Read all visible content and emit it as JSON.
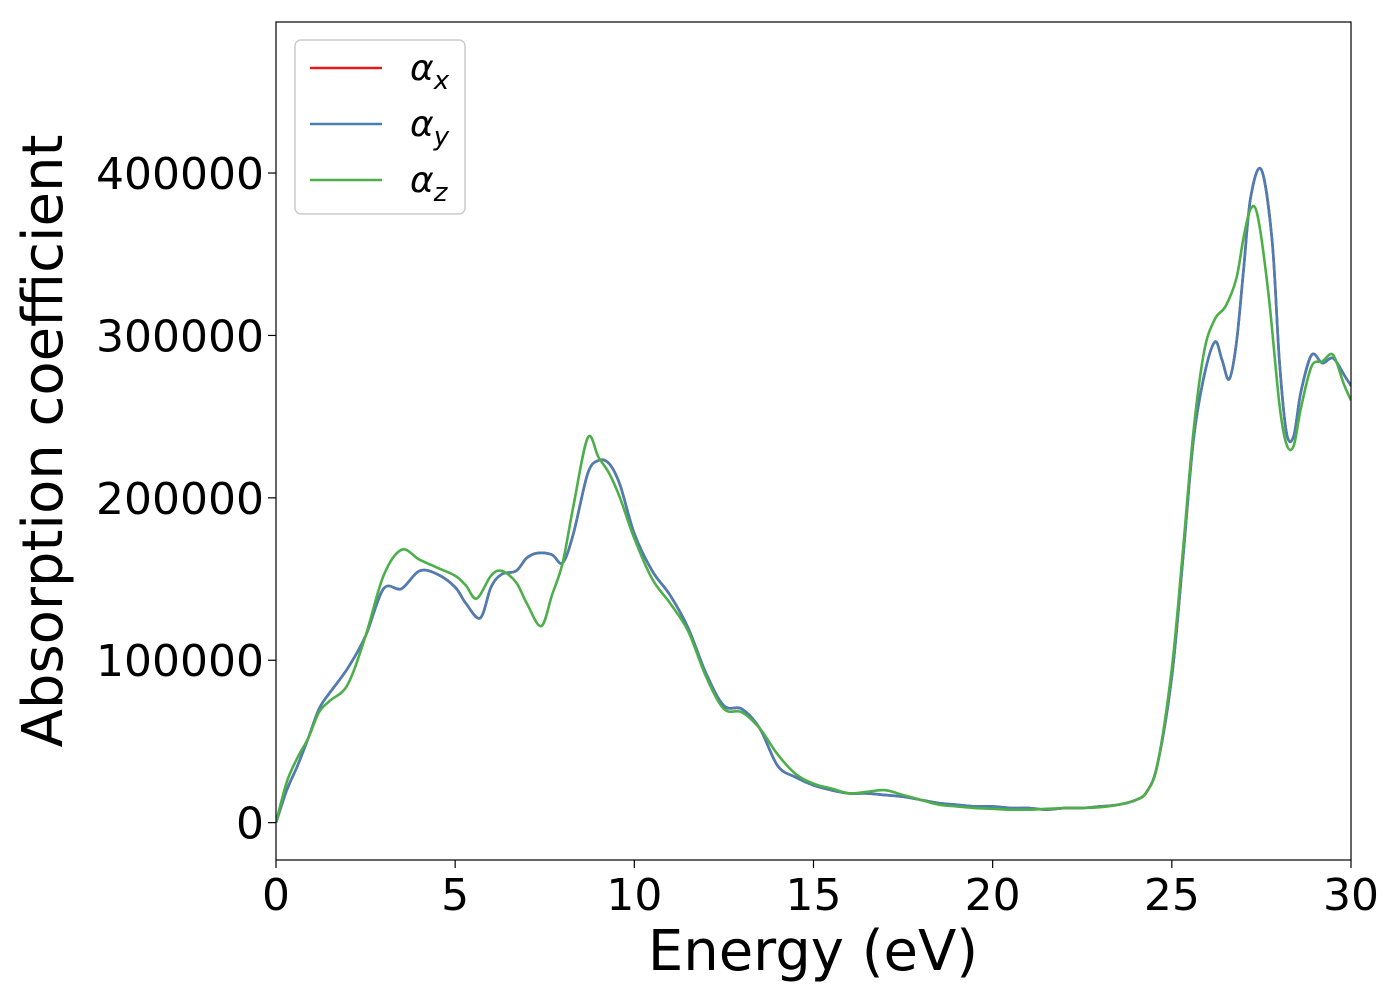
{
  "chart_data": {
    "type": "line",
    "title": "",
    "xlabel": "Energy (eV)",
    "ylabel": "Absorption coefficient",
    "xlim": [
      0,
      30
    ],
    "ylim": [
      -23000,
      493000
    ],
    "xticks": [
      0,
      5,
      10,
      15,
      20,
      25,
      30
    ],
    "xtick_labels": [
      "0",
      "5",
      "10",
      "15",
      "20",
      "25",
      "30"
    ],
    "yticks": [
      0,
      100000,
      200000,
      300000,
      400000
    ],
    "ytick_labels": [
      "0",
      "100000",
      "200000",
      "300000",
      "400000"
    ],
    "grid": false,
    "legend_position": "top-left",
    "series": [
      {
        "name": "α_x",
        "legend_base": "α",
        "legend_sub": "x",
        "color": "#e41a1c",
        "x": [
          0,
          0.3,
          0.6,
          0.9,
          1.2,
          1.5,
          2,
          2.5,
          3,
          3.5,
          4,
          4.5,
          5,
          5.3,
          5.7,
          6,
          6.3,
          6.7,
          7,
          7.3,
          7.7,
          8,
          8.3,
          8.7,
          9,
          9.3,
          9.6,
          10,
          10.5,
          11,
          11.5,
          12,
          12.5,
          13,
          13.5,
          14,
          14.5,
          15,
          15.5,
          16,
          16.5,
          17,
          17.5,
          18,
          18.5,
          19,
          19.5,
          20,
          20.5,
          21,
          21.5,
          22,
          22.5,
          23,
          23.5,
          24,
          24.3,
          24.6,
          25,
          25.3,
          25.6,
          25.9,
          26.2,
          26.4,
          26.6,
          26.8,
          27,
          27.2,
          27.5,
          27.8,
          28,
          28.2,
          28.4,
          28.6,
          28.9,
          29.2,
          29.5,
          29.8,
          30
        ],
        "y": [
          0,
          20000,
          35000,
          52000,
          70000,
          80000,
          95000,
          115000,
          144000,
          144000,
          155000,
          153000,
          145000,
          135000,
          126000,
          145000,
          153000,
          155000,
          163000,
          166000,
          165000,
          160000,
          178000,
          215000,
          223000,
          221000,
          208000,
          178000,
          155000,
          140000,
          120000,
          92000,
          72000,
          70000,
          58000,
          35000,
          28000,
          23000,
          20000,
          18000,
          18000,
          17000,
          16000,
          14000,
          12000,
          11000,
          10000,
          10000,
          9000,
          9000,
          8000,
          9000,
          9000,
          10000,
          11000,
          14000,
          19000,
          36000,
          90000,
          160000,
          235000,
          275000,
          296000,
          285000,
          273000,
          295000,
          340000,
          385000,
          402000,
          358000,
          285000,
          240000,
          238000,
          265000,
          288000,
          283000,
          286000,
          276000,
          269000
        ]
      },
      {
        "name": "α_y",
        "legend_base": "α",
        "legend_sub": "y",
        "color": "#4a7fb5",
        "x": [
          0,
          0.3,
          0.6,
          0.9,
          1.2,
          1.5,
          2,
          2.5,
          3,
          3.5,
          4,
          4.5,
          5,
          5.3,
          5.7,
          6,
          6.3,
          6.7,
          7,
          7.3,
          7.7,
          8,
          8.3,
          8.7,
          9,
          9.3,
          9.6,
          10,
          10.5,
          11,
          11.5,
          12,
          12.5,
          13,
          13.5,
          14,
          14.5,
          15,
          15.5,
          16,
          16.5,
          17,
          17.5,
          18,
          18.5,
          19,
          19.5,
          20,
          20.5,
          21,
          21.5,
          22,
          22.5,
          23,
          23.5,
          24,
          24.3,
          24.6,
          25,
          25.3,
          25.6,
          25.9,
          26.2,
          26.4,
          26.6,
          26.8,
          27,
          27.2,
          27.5,
          27.8,
          28,
          28.2,
          28.4,
          28.6,
          28.9,
          29.2,
          29.5,
          29.8,
          30
        ],
        "y": [
          0,
          20000,
          35000,
          52000,
          70000,
          80000,
          95000,
          115000,
          144000,
          144000,
          155000,
          153000,
          145000,
          135000,
          126000,
          145000,
          153000,
          155000,
          163000,
          166000,
          165000,
          160000,
          178000,
          215000,
          223000,
          221000,
          208000,
          178000,
          155000,
          140000,
          120000,
          92000,
          72000,
          70000,
          58000,
          35000,
          28000,
          23000,
          20000,
          18000,
          18000,
          17000,
          16000,
          14000,
          12000,
          11000,
          10000,
          10000,
          9000,
          9000,
          8000,
          9000,
          9000,
          10000,
          11000,
          14000,
          19000,
          36000,
          90000,
          160000,
          235000,
          275000,
          296000,
          285000,
          273000,
          295000,
          340000,
          385000,
          402000,
          358000,
          285000,
          240000,
          238000,
          265000,
          288000,
          283000,
          286000,
          276000,
          269000
        ]
      },
      {
        "name": "α_z",
        "legend_base": "α",
        "legend_sub": "z",
        "color": "#4daf4a",
        "x": [
          0,
          0.3,
          0.6,
          0.9,
          1.2,
          1.5,
          2,
          2.5,
          3,
          3.5,
          4,
          4.5,
          5,
          5.3,
          5.6,
          6,
          6.3,
          6.7,
          7,
          7.4,
          7.7,
          8,
          8.3,
          8.7,
          9,
          9.3,
          9.6,
          10,
          10.5,
          11,
          11.5,
          12,
          12.5,
          13,
          13.5,
          14,
          14.5,
          15,
          15.5,
          16,
          16.5,
          17,
          17.5,
          18,
          18.5,
          19,
          19.5,
          20,
          20.5,
          21,
          21.5,
          22,
          22.5,
          23,
          23.5,
          24,
          24.3,
          24.6,
          25,
          25.3,
          25.6,
          25.9,
          26.2,
          26.5,
          26.8,
          27,
          27.2,
          27.4,
          27.7,
          28,
          28.2,
          28.4,
          28.6,
          28.9,
          29.2,
          29.5,
          29.8,
          30
        ],
        "y": [
          0,
          25000,
          40000,
          52000,
          68000,
          75000,
          85000,
          115000,
          152000,
          168000,
          162000,
          157000,
          152000,
          146000,
          138000,
          152000,
          155000,
          148000,
          135000,
          121000,
          140000,
          160000,
          195000,
          237000,
          225000,
          215000,
          200000,
          175000,
          150000,
          135000,
          118000,
          90000,
          70000,
          68000,
          58000,
          42000,
          30000,
          24000,
          21000,
          18000,
          19000,
          20000,
          17000,
          14000,
          11000,
          10000,
          9000,
          8500,
          8000,
          8000,
          8500,
          9000,
          9000,
          9500,
          11000,
          14000,
          19000,
          36000,
          95000,
          165000,
          240000,
          290000,
          310000,
          318000,
          335000,
          360000,
          378000,
          373000,
          325000,
          258000,
          233000,
          232000,
          255000,
          281000,
          284000,
          288000,
          270000,
          260000
        ]
      }
    ]
  }
}
